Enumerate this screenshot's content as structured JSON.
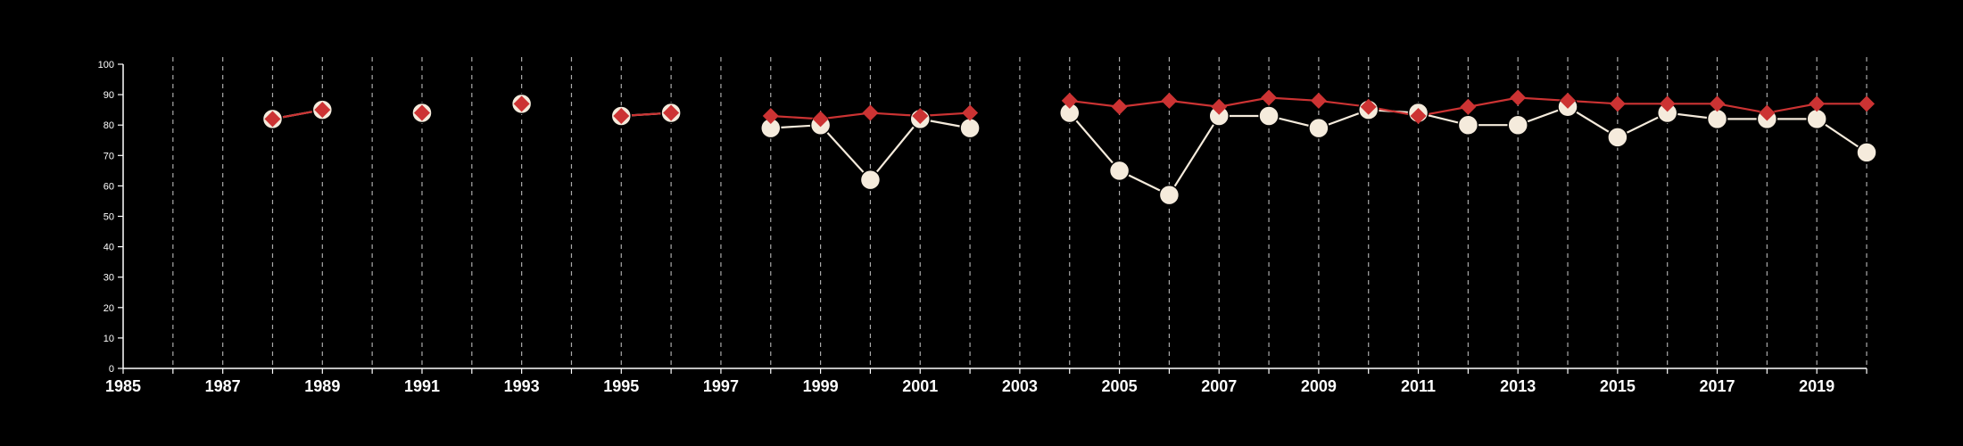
{
  "chart_data": {
    "type": "line",
    "title": "",
    "xlabel": "",
    "ylabel": "",
    "xlim": [
      1985,
      2020
    ],
    "ylim": [
      0,
      100
    ],
    "x_ticks": [
      1985,
      1987,
      1989,
      1991,
      1993,
      1995,
      1997,
      1999,
      2001,
      2003,
      2005,
      2007,
      2009,
      2011,
      2013,
      2015,
      2017,
      2019
    ],
    "x_tick_labels": [
      "1985",
      "1987",
      "1989",
      "1991",
      "1993",
      "1995",
      "1997",
      "1999",
      "2001",
      "2003",
      "2005",
      "2007",
      "2009",
      "2011",
      "2013",
      "2015",
      "2017",
      "2019"
    ],
    "y_ticks": [
      0,
      10,
      20,
      30,
      40,
      50,
      60,
      70,
      80,
      90,
      100
    ],
    "y_tick_labels": [
      "0",
      "10",
      "20",
      "30",
      "40",
      "50",
      "60",
      "70",
      "80",
      "90",
      "100"
    ],
    "grid": "vertical-dashed",
    "legend": "none",
    "colors": {
      "background": "#000000",
      "axis": "#ffffff",
      "grid": "#aaaaaa",
      "series_a": "#f5ebdc",
      "series_b": "#cc3333"
    },
    "series": [
      {
        "marker": "circle",
        "color": "#f5ebdc",
        "segments": [
          [
            [
              1988,
              82
            ],
            [
              1989,
              85
            ]
          ],
          [
            [
              1991,
              84
            ]
          ],
          [
            [
              1993,
              87
            ]
          ],
          [
            [
              1995,
              83
            ],
            [
              1996,
              84
            ]
          ],
          [
            [
              1998,
              79
            ],
            [
              1999,
              80
            ],
            [
              2000,
              62
            ],
            [
              2001,
              82
            ],
            [
              2002,
              79
            ]
          ],
          [
            [
              2004,
              84
            ],
            [
              2005,
              65
            ],
            [
              2006,
              57
            ],
            [
              2007,
              83
            ],
            [
              2008,
              83
            ],
            [
              2009,
              79
            ],
            [
              2010,
              85
            ],
            [
              2011,
              84
            ],
            [
              2012,
              80
            ],
            [
              2013,
              80
            ],
            [
              2014,
              86
            ],
            [
              2015,
              76
            ],
            [
              2016,
              84
            ],
            [
              2017,
              82
            ],
            [
              2018,
              82
            ],
            [
              2019,
              82
            ],
            [
              2020,
              71
            ]
          ]
        ]
      },
      {
        "marker": "diamond",
        "color": "#cc3333",
        "segments": [
          [
            [
              1988,
              82
            ],
            [
              1989,
              85
            ]
          ],
          [
            [
              1991,
              84
            ]
          ],
          [
            [
              1993,
              87
            ]
          ],
          [
            [
              1995,
              83
            ],
            [
              1996,
              84
            ]
          ],
          [
            [
              1998,
              83
            ],
            [
              1999,
              82
            ],
            [
              2000,
              84
            ],
            [
              2001,
              83
            ],
            [
              2002,
              84
            ]
          ],
          [
            [
              2004,
              88
            ],
            [
              2005,
              86
            ],
            [
              2006,
              88
            ],
            [
              2007,
              86
            ],
            [
              2008,
              89
            ],
            [
              2009,
              88
            ],
            [
              2010,
              86
            ],
            [
              2011,
              83
            ],
            [
              2012,
              86
            ],
            [
              2013,
              89
            ],
            [
              2014,
              88
            ],
            [
              2015,
              87
            ],
            [
              2016,
              87
            ],
            [
              2017,
              87
            ],
            [
              2018,
              84
            ],
            [
              2019,
              87
            ],
            [
              2020,
              87
            ]
          ]
        ]
      }
    ]
  }
}
